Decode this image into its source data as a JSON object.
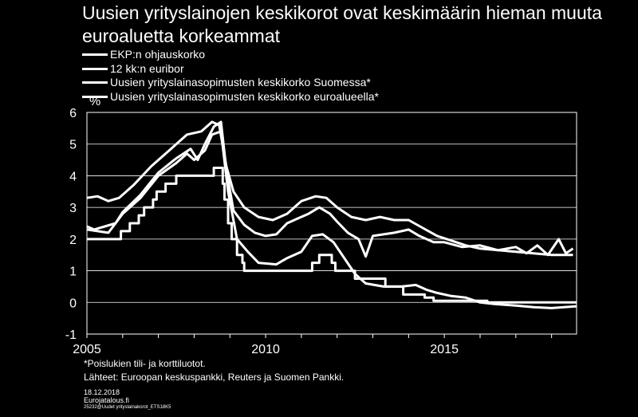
{
  "title": "Uusien yrityslainojen keskikorot ovat keskimäärin hieman muuta euroaluetta korkeammat",
  "footnote": {
    "note": "*Poislukien tili- ja korttiluotot.",
    "sources": "Lähteet: Euroopan keskuspankki, Reuters ja Suomen Pankki."
  },
  "meta": {
    "date": "18.12.2018",
    "site": "Eurojatalous.fi",
    "code": "25232@Uudet yrityslainakorot_ETS18K5"
  },
  "chart_data": {
    "type": "line",
    "ylabel": "%",
    "xlim": [
      2005,
      2018.7
    ],
    "ylim": [
      -1,
      6
    ],
    "yticks": [
      6,
      5,
      4,
      3,
      2,
      1,
      0,
      -1
    ],
    "xticks": [
      2005,
      2010,
      2015
    ],
    "grid": true,
    "legend_position": "top-left",
    "series": [
      {
        "name": "EKP:n ohjauskorko",
        "step": true,
        "points": [
          [
            2005,
            2.0
          ],
          [
            2005.95,
            2.25
          ],
          [
            2006.2,
            2.5
          ],
          [
            2006.45,
            2.75
          ],
          [
            2006.6,
            3.0
          ],
          [
            2006.85,
            3.25
          ],
          [
            2006.95,
            3.5
          ],
          [
            2007.2,
            3.75
          ],
          [
            2007.5,
            4.0
          ],
          [
            2008.55,
            4.25
          ],
          [
            2008.8,
            3.75
          ],
          [
            2008.85,
            3.25
          ],
          [
            2008.95,
            2.5
          ],
          [
            2009.05,
            2.0
          ],
          [
            2009.2,
            1.5
          ],
          [
            2009.35,
            1.25
          ],
          [
            2009.4,
            1.0
          ],
          [
            2011.3,
            1.25
          ],
          [
            2011.5,
            1.5
          ],
          [
            2011.85,
            1.25
          ],
          [
            2011.95,
            1.0
          ],
          [
            2012.5,
            0.75
          ],
          [
            2013.35,
            0.5
          ],
          [
            2013.85,
            0.25
          ],
          [
            2014.45,
            0.15
          ],
          [
            2014.7,
            0.05
          ],
          [
            2016.2,
            0.0
          ],
          [
            2018.7,
            0.0
          ]
        ]
      },
      {
        "name": "12 kk:n euribor",
        "points": [
          [
            2005,
            2.3
          ],
          [
            2005.3,
            2.25
          ],
          [
            2005.6,
            2.2
          ],
          [
            2005.8,
            2.5
          ],
          [
            2006,
            2.8
          ],
          [
            2006.5,
            3.3
          ],
          [
            2007,
            4.0
          ],
          [
            2007.5,
            4.4
          ],
          [
            2007.8,
            4.7
          ],
          [
            2008,
            4.5
          ],
          [
            2008.3,
            4.8
          ],
          [
            2008.5,
            5.3
          ],
          [
            2008.75,
            5.4
          ],
          [
            2008.95,
            3.5
          ],
          [
            2009.2,
            2.0
          ],
          [
            2009.5,
            1.6
          ],
          [
            2009.8,
            1.25
          ],
          [
            2010.3,
            1.2
          ],
          [
            2010.6,
            1.4
          ],
          [
            2011,
            1.6
          ],
          [
            2011.3,
            2.1
          ],
          [
            2011.6,
            2.15
          ],
          [
            2011.9,
            1.9
          ],
          [
            2012.2,
            1.4
          ],
          [
            2012.5,
            0.9
          ],
          [
            2012.8,
            0.6
          ],
          [
            2013.3,
            0.5
          ],
          [
            2013.8,
            0.5
          ],
          [
            2014.2,
            0.55
          ],
          [
            2014.5,
            0.4
          ],
          [
            2014.8,
            0.3
          ],
          [
            2015.2,
            0.2
          ],
          [
            2015.6,
            0.15
          ],
          [
            2016,
            0.0
          ],
          [
            2016.4,
            -0.05
          ],
          [
            2017,
            -0.1
          ],
          [
            2017.5,
            -0.15
          ],
          [
            2018,
            -0.18
          ],
          [
            2018.7,
            -0.12
          ]
        ]
      },
      {
        "name": "Uusien yrityslainasopimusten keskikorko Suomessa*",
        "points": [
          [
            2005,
            2.4
          ],
          [
            2005.2,
            2.3
          ],
          [
            2005.5,
            2.4
          ],
          [
            2005.8,
            2.5
          ],
          [
            2006,
            2.85
          ],
          [
            2006.5,
            3.4
          ],
          [
            2007,
            4.1
          ],
          [
            2007.5,
            4.55
          ],
          [
            2007.9,
            4.85
          ],
          [
            2008.1,
            4.5
          ],
          [
            2008.3,
            5.0
          ],
          [
            2008.55,
            5.55
          ],
          [
            2008.75,
            5.7
          ],
          [
            2008.9,
            4.2
          ],
          [
            2009.1,
            2.9
          ],
          [
            2009.4,
            2.45
          ],
          [
            2009.7,
            2.2
          ],
          [
            2010,
            2.1
          ],
          [
            2010.3,
            2.15
          ],
          [
            2010.6,
            2.5
          ],
          [
            2010.9,
            2.65
          ],
          [
            2011.2,
            2.8
          ],
          [
            2011.5,
            3.0
          ],
          [
            2011.8,
            2.8
          ],
          [
            2012,
            2.55
          ],
          [
            2012.3,
            2.2
          ],
          [
            2012.6,
            2.0
          ],
          [
            2012.8,
            1.45
          ],
          [
            2013,
            2.1
          ],
          [
            2013.3,
            2.15
          ],
          [
            2013.6,
            2.2
          ],
          [
            2014,
            2.3
          ],
          [
            2014.3,
            2.1
          ],
          [
            2014.7,
            1.9
          ],
          [
            2015,
            1.9
          ],
          [
            2015.5,
            1.75
          ],
          [
            2016,
            1.8
          ],
          [
            2016.5,
            1.65
          ],
          [
            2017,
            1.75
          ],
          [
            2017.3,
            1.55
          ],
          [
            2017.6,
            1.8
          ],
          [
            2017.9,
            1.5
          ],
          [
            2018.2,
            2.0
          ],
          [
            2018.4,
            1.55
          ],
          [
            2018.6,
            1.7
          ]
        ]
      },
      {
        "name": "Uusien yrityslainasopimusten keskikorko euroalueella*",
        "points": [
          [
            2005,
            3.3
          ],
          [
            2005.3,
            3.35
          ],
          [
            2005.6,
            3.2
          ],
          [
            2005.9,
            3.3
          ],
          [
            2006.3,
            3.7
          ],
          [
            2006.8,
            4.3
          ],
          [
            2007.3,
            4.8
          ],
          [
            2007.8,
            5.3
          ],
          [
            2008.2,
            5.4
          ],
          [
            2008.5,
            5.7
          ],
          [
            2008.7,
            5.6
          ],
          [
            2008.9,
            4.3
          ],
          [
            2009.1,
            3.5
          ],
          [
            2009.4,
            3.0
          ],
          [
            2009.8,
            2.7
          ],
          [
            2010.2,
            2.6
          ],
          [
            2010.6,
            2.8
          ],
          [
            2011,
            3.2
          ],
          [
            2011.4,
            3.35
          ],
          [
            2011.7,
            3.3
          ],
          [
            2012,
            3.0
          ],
          [
            2012.4,
            2.7
          ],
          [
            2012.8,
            2.6
          ],
          [
            2013.2,
            2.7
          ],
          [
            2013.6,
            2.6
          ],
          [
            2014,
            2.6
          ],
          [
            2014.4,
            2.35
          ],
          [
            2014.8,
            2.1
          ],
          [
            2015.2,
            1.95
          ],
          [
            2015.6,
            1.8
          ],
          [
            2016,
            1.7
          ],
          [
            2016.5,
            1.65
          ],
          [
            2017,
            1.6
          ],
          [
            2017.5,
            1.55
          ],
          [
            2018,
            1.5
          ],
          [
            2018.6,
            1.5
          ]
        ]
      }
    ]
  }
}
